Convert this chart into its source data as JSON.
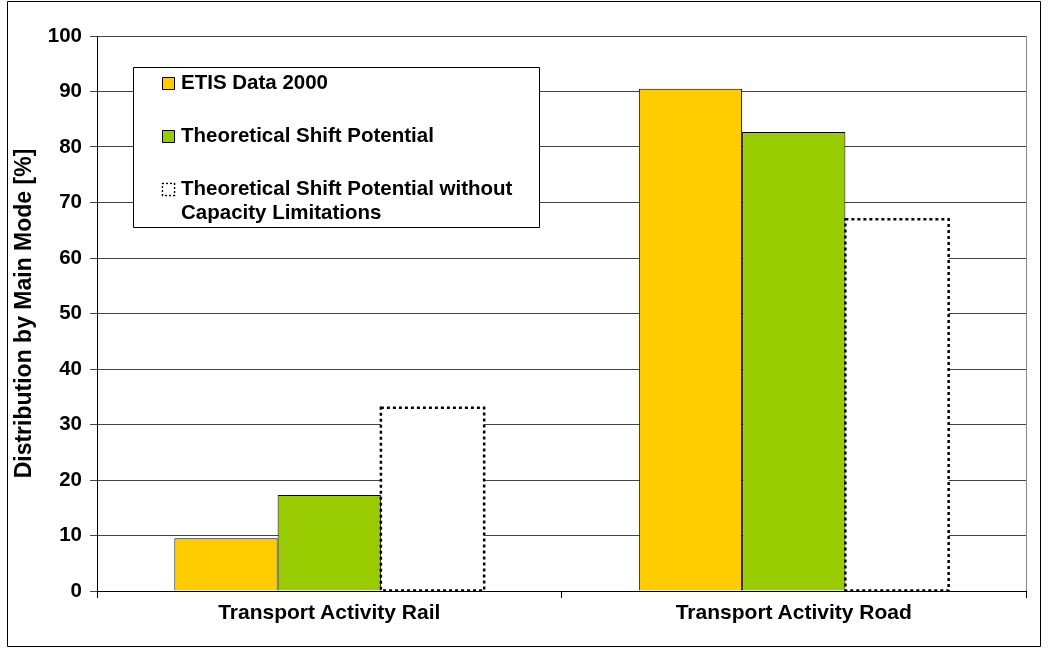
{
  "chart_data": {
    "type": "bar",
    "ylabel": "Distribution by Main Mode [%]",
    "categories": [
      "Transport Activity Rail",
      "Transport Activity Road"
    ],
    "series": [
      {
        "name": "ETIS Data 2000",
        "color": "#ffcc00",
        "values": [
          9.5,
          90.5
        ]
      },
      {
        "name": "Theoretical Shift Potential",
        "color": "#99cc00",
        "values": [
          17.3,
          82.7
        ]
      },
      {
        "name": "Theoretical Shift Potential without Capacity Limitations",
        "color": "#ffffff",
        "line_style": "dotted",
        "values": [
          33,
          67
        ]
      }
    ],
    "ylim": [
      0,
      100
    ],
    "yticks": [
      0,
      10,
      20,
      30,
      40,
      50,
      60,
      70,
      80,
      90,
      100
    ],
    "grid": "y",
    "legend": "top left"
  }
}
